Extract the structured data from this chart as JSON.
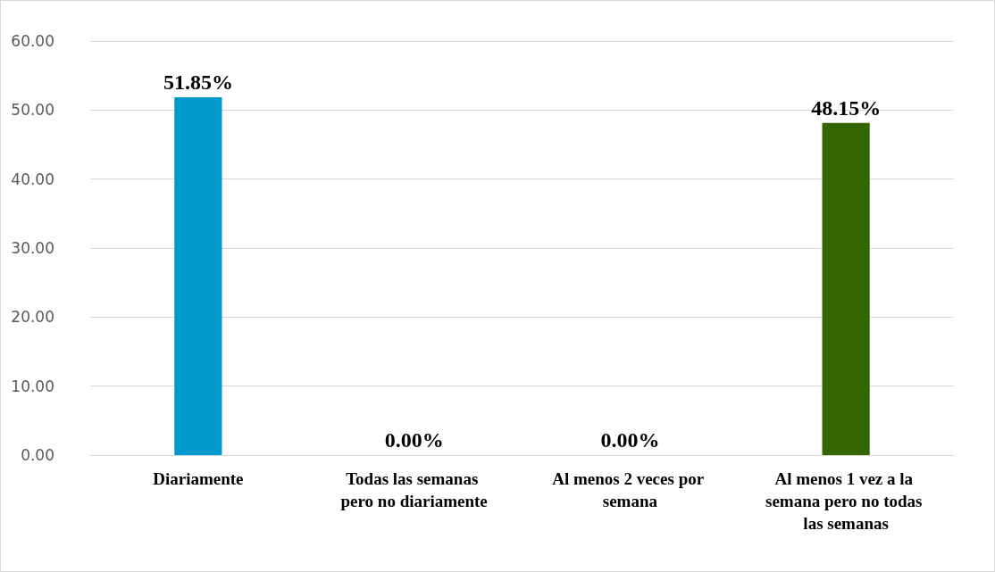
{
  "chart_data": {
    "type": "bar",
    "categories": [
      "Diariamente",
      "Todas las semanas pero no diariamente",
      "Al menos 2 veces por semana",
      "Al menos 1 vez a la semana pero no todas las semanas"
    ],
    "values": [
      51.85,
      0,
      0,
      48.15
    ],
    "colors": [
      "#0099cc",
      "#4b0048",
      "#c4c47a",
      "#336600"
    ],
    "value_labels": [
      "51.85%",
      "0.00%",
      "0.00%",
      "48.15%"
    ],
    "ylim": [
      0,
      60
    ],
    "yticks": [
      {
        "value": 0,
        "label": "0.00"
      },
      {
        "value": 10,
        "label": "10.00"
      },
      {
        "value": 20,
        "label": "20.00"
      },
      {
        "value": 30,
        "label": "30.00"
      },
      {
        "value": 40,
        "label": "40.00"
      },
      {
        "value": 50,
        "label": "50.00"
      },
      {
        "value": 60,
        "label": "60.00"
      }
    ],
    "grid": "y"
  }
}
